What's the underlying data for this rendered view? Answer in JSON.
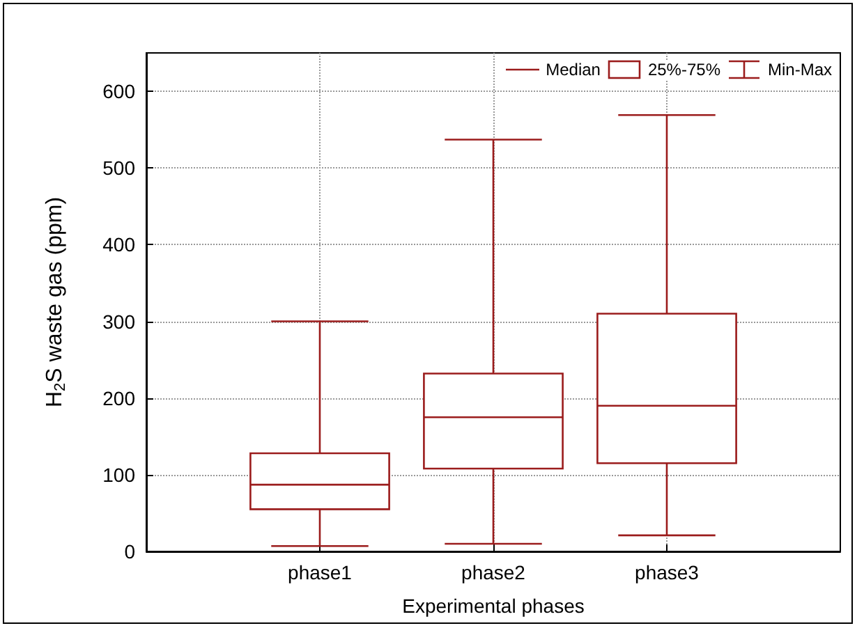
{
  "chart_data": {
    "type": "box",
    "xlabel": "Experimental phases",
    "ylabel": "H$_{2}$S waste gas (ppm)",
    "categories": [
      "phase1",
      "phase2",
      "phase3"
    ],
    "series": [
      {
        "color": "#9b1c1c",
        "boxes": [
          {
            "low": 7,
            "q1": 55,
            "median": 87,
            "q3": 128,
            "high": 300
          },
          {
            "low": 10,
            "q1": 108,
            "median": 175,
            "q3": 232,
            "high": 537
          },
          {
            "low": 21,
            "q1": 115,
            "median": 190,
            "q3": 310,
            "high": 569
          }
        ]
      }
    ],
    "ylim": [
      0,
      650
    ],
    "yticks": [
      0,
      100,
      200,
      300,
      400,
      500,
      600
    ],
    "grid": true,
    "annotations": [
      "Median",
      "25%-75%",
      "Min-Max"
    ]
  }
}
